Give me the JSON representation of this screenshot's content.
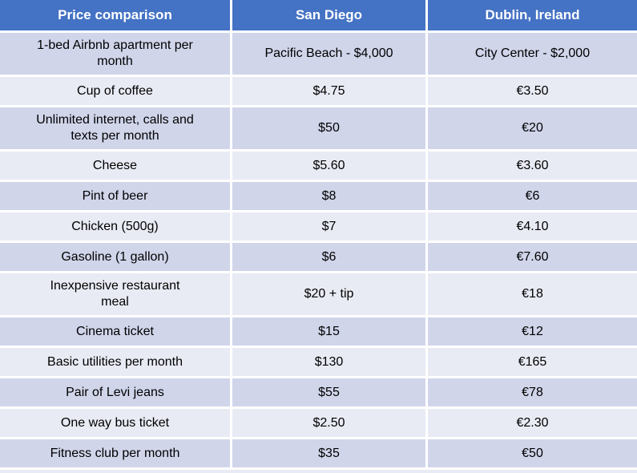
{
  "chart_data": {
    "type": "table",
    "title": "Price comparison",
    "columns": [
      "Price comparison",
      "San Diego",
      "Dublin, Ireland"
    ],
    "rows": [
      [
        "1-bed Airbnb apartment per\nmonth",
        "Pacific Beach - $4,000",
        "City Center - $2,000"
      ],
      [
        "Cup of coffee",
        "$4.75",
        "€3.50"
      ],
      [
        "Unlimited internet, calls and\ntexts per month",
        "$50",
        "€20"
      ],
      [
        "Cheese",
        "$5.60",
        "€3.60"
      ],
      [
        "Pint of beer",
        "$8",
        "€6"
      ],
      [
        "Chicken (500g)",
        "$7",
        "€4.10"
      ],
      [
        "Gasoline (1 gallon)",
        "$6",
        "€7.60"
      ],
      [
        "Inexpensive restaurant\nmeal",
        "$20 + tip",
        "€18"
      ],
      [
        "Cinema ticket",
        "$15",
        "€12"
      ],
      [
        "Basic utilities per month",
        "$130",
        "€165"
      ],
      [
        "Pair of Levi jeans",
        "$55",
        "€78"
      ],
      [
        "One way bus ticket",
        "$2.50",
        "€2.30"
      ],
      [
        "Fitness club per month",
        "$35",
        "€50"
      ]
    ],
    "layout": {
      "banded_rows": true,
      "grid_lines": "white"
    }
  },
  "colors": {
    "header_bg": "#4472C4",
    "header_text": "#FFFFFF",
    "row_dark": "#D0D5EA",
    "row_light": "#E9EBF4",
    "grid_line": "#FFFFFF",
    "text": "#000000"
  }
}
